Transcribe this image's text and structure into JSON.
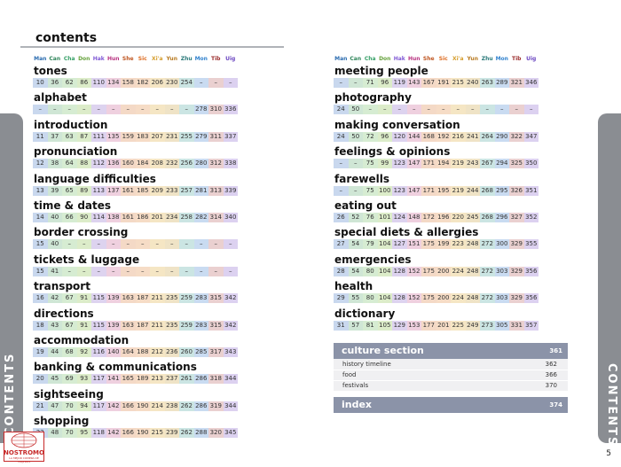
{
  "title": "contents",
  "side_tab_label": "CONTENTS",
  "page_number": "5",
  "logo": {
    "name": "NOSTROMO",
    "tagline": "LA MEJOR COMPRA DE VIAJEROS"
  },
  "languages": [
    {
      "code": "Man",
      "color": "#2b6cb0"
    },
    {
      "code": "Can",
      "color": "#2f855a"
    },
    {
      "code": "Cha",
      "color": "#38a169"
    },
    {
      "code": "Don",
      "color": "#68a33f"
    },
    {
      "code": "Hak",
      "color": "#805ad5"
    },
    {
      "code": "Hun",
      "color": "#b83280"
    },
    {
      "code": "She",
      "color": "#c05621"
    },
    {
      "code": "Sic",
      "color": "#dd6b20"
    },
    {
      "code": "Xi'a",
      "color": "#d69e2e"
    },
    {
      "code": "Yun",
      "color": "#b7791f"
    },
    {
      "code": "Zhu",
      "color": "#2c7a7b"
    },
    {
      "code": "Mon",
      "color": "#3182ce"
    },
    {
      "code": "Tib",
      "color": "#9b2c2c"
    },
    {
      "code": "Uig",
      "color": "#6b46c1"
    }
  ],
  "cell_colors": [
    "#c9d8ee",
    "#cfe6d5",
    "#d6ecd2",
    "#dcecc9",
    "#ddd3ef",
    "#efd0df",
    "#f4d9c6",
    "#f6dcc6",
    "#f5e6c4",
    "#efe3c6",
    "#cbe5e3",
    "#c9dbf1",
    "#ead0d0",
    "#dcd1f0"
  ],
  "left_entries": [
    {
      "title": "tones",
      "pages": [
        "10",
        "36",
        "62",
        "86",
        "110",
        "134",
        "158",
        "182",
        "206",
        "230",
        "254",
        "–",
        "–",
        "–"
      ]
    },
    {
      "title": "alphabet",
      "pages": [
        "–",
        "–",
        "–",
        "–",
        "–",
        "–",
        "–",
        "–",
        "–",
        "–",
        "–",
        "278",
        "310",
        "336"
      ]
    },
    {
      "title": "introduction",
      "pages": [
        "11",
        "37",
        "63",
        "87",
        "111",
        "135",
        "159",
        "183",
        "207",
        "231",
        "255",
        "279",
        "311",
        "337"
      ]
    },
    {
      "title": "pronunciation",
      "pages": [
        "12",
        "38",
        "64",
        "88",
        "112",
        "136",
        "160",
        "184",
        "208",
        "232",
        "256",
        "280",
        "312",
        "338"
      ]
    },
    {
      "title": "language difficulties",
      "pages": [
        "13",
        "39",
        "65",
        "89",
        "113",
        "137",
        "161",
        "185",
        "209",
        "233",
        "257",
        "281",
        "313",
        "339"
      ]
    },
    {
      "title": "time & dates",
      "pages": [
        "14",
        "40",
        "66",
        "90",
        "114",
        "138",
        "161",
        "186",
        "201",
        "234",
        "258",
        "282",
        "314",
        "340"
      ]
    },
    {
      "title": "border crossing",
      "pages": [
        "15",
        "40",
        "–",
        "–",
        "–",
        "–",
        "–",
        "–",
        "–",
        "–",
        "–",
        "–",
        "–",
        "–"
      ]
    },
    {
      "title": "tickets & luggage",
      "pages": [
        "15",
        "41",
        "–",
        "–",
        "–",
        "–",
        "–",
        "–",
        "–",
        "–",
        "–",
        "–",
        "–",
        "–"
      ]
    },
    {
      "title": "transport",
      "pages": [
        "16",
        "42",
        "67",
        "91",
        "115",
        "139",
        "163",
        "187",
        "211",
        "235",
        "259",
        "283",
        "315",
        "342"
      ]
    },
    {
      "title": "directions",
      "pages": [
        "18",
        "43",
        "67",
        "91",
        "115",
        "139",
        "163",
        "187",
        "211",
        "235",
        "259",
        "283",
        "315",
        "342"
      ]
    },
    {
      "title": "accommodation",
      "pages": [
        "19",
        "44",
        "68",
        "92",
        "116",
        "140",
        "164",
        "188",
        "212",
        "236",
        "260",
        "285",
        "317",
        "343"
      ]
    },
    {
      "title": "banking & communications",
      "pages": [
        "20",
        "45",
        "69",
        "93",
        "117",
        "141",
        "165",
        "189",
        "213",
        "237",
        "261",
        "286",
        "318",
        "344"
      ]
    },
    {
      "title": "sightseeing",
      "pages": [
        "21",
        "47",
        "70",
        "94",
        "117",
        "142",
        "166",
        "190",
        "214",
        "238",
        "262",
        "286",
        "319",
        "344"
      ]
    },
    {
      "title": "shopping",
      "pages": [
        "22",
        "48",
        "70",
        "95",
        "118",
        "142",
        "166",
        "190",
        "215",
        "239",
        "262",
        "288",
        "320",
        "345"
      ]
    }
  ],
  "right_entries": [
    {
      "title": "meeting people",
      "pages": [
        "–",
        "–",
        "71",
        "96",
        "119",
        "143",
        "167",
        "191",
        "215",
        "240",
        "263",
        "289",
        "321",
        "346"
      ]
    },
    {
      "title": "photography",
      "pages": [
        "24",
        "50",
        "–",
        "–",
        "–",
        "–",
        "–",
        "–",
        "–",
        "–",
        "–",
        "–",
        "–",
        "–"
      ]
    },
    {
      "title": "making conversation",
      "pages": [
        "24",
        "50",
        "72",
        "96",
        "120",
        "144",
        "168",
        "192",
        "216",
        "241",
        "264",
        "290",
        "322",
        "347"
      ]
    },
    {
      "title": "feelings & opinions",
      "pages": [
        "–",
        "–",
        "75",
        "99",
        "123",
        "147",
        "171",
        "194",
        "219",
        "243",
        "267",
        "294",
        "325",
        "350"
      ]
    },
    {
      "title": "farewells",
      "pages": [
        "–",
        "–",
        "75",
        "100",
        "123",
        "147",
        "171",
        "195",
        "219",
        "244",
        "268",
        "295",
        "326",
        "351"
      ]
    },
    {
      "title": "eating out",
      "pages": [
        "26",
        "52",
        "76",
        "101",
        "124",
        "148",
        "172",
        "196",
        "220",
        "245",
        "268",
        "296",
        "327",
        "352"
      ]
    },
    {
      "title": "special diets & allergies",
      "pages": [
        "27",
        "54",
        "79",
        "104",
        "127",
        "151",
        "175",
        "199",
        "223",
        "248",
        "272",
        "300",
        "329",
        "355"
      ]
    },
    {
      "title": "emergencies",
      "pages": [
        "28",
        "54",
        "80",
        "104",
        "128",
        "152",
        "175",
        "200",
        "224",
        "248",
        "272",
        "303",
        "329",
        "356"
      ]
    },
    {
      "title": "health",
      "pages": [
        "29",
        "55",
        "80",
        "104",
        "128",
        "152",
        "175",
        "200",
        "224",
        "248",
        "272",
        "303",
        "329",
        "356"
      ]
    },
    {
      "title": "dictionary",
      "pages": [
        "31",
        "57",
        "81",
        "105",
        "129",
        "153",
        "177",
        "201",
        "225",
        "249",
        "273",
        "305",
        "331",
        "357"
      ]
    }
  ],
  "culture_section": {
    "label": "culture section",
    "page": "361",
    "items": [
      {
        "label": "history timeline",
        "page": "362"
      },
      {
        "label": "food",
        "page": "366"
      },
      {
        "label": "festivals",
        "page": "370"
      }
    ]
  },
  "index": {
    "label": "index",
    "page": "374"
  }
}
